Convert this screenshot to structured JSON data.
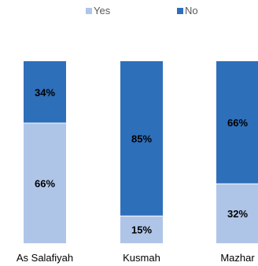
{
  "chart_data": {
    "type": "bar",
    "stacked": true,
    "percent_stacked": true,
    "categories": [
      "As Salafiyah",
      "Kusmah",
      "Mazhar"
    ],
    "series": [
      {
        "name": "Yes",
        "values": [
          66,
          15,
          32
        ],
        "labels": [
          "66%",
          "15%",
          "32%"
        ],
        "color": "#aec5e8"
      },
      {
        "name": "No",
        "values": [
          34,
          85,
          66
        ],
        "labels": [
          "34%",
          "85%",
          "66%"
        ],
        "color": "#2e6fba"
      }
    ],
    "ylim": [
      0,
      100
    ],
    "grid": false,
    "legend": "top"
  }
}
